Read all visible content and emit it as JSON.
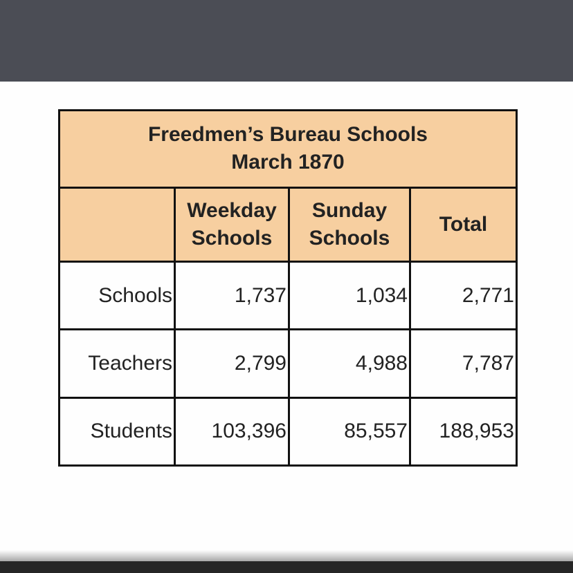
{
  "table": {
    "title_line1": "Freedmen’s Bureau Schools",
    "title_line2": "March 1870",
    "columns": [
      {
        "line1": "",
        "line2": ""
      },
      {
        "line1": "Weekday",
        "line2": "Schools"
      },
      {
        "line1": "Sunday",
        "line2": "Schools"
      },
      {
        "line1": "Total",
        "line2": ""
      }
    ],
    "rows": [
      {
        "label": "Schools",
        "weekday": "1,737",
        "sunday": "1,034",
        "total": "2,771"
      },
      {
        "label": "Teachers",
        "weekday": "2,799",
        "sunday": "4,988",
        "total": "7,787"
      },
      {
        "label": "Students",
        "weekday": "103,396",
        "sunday": "85,557",
        "total": "188,953"
      }
    ]
  },
  "colors": {
    "header_fill": "#f7cfa0",
    "top_bar": "#4b4d55",
    "bottom_bar": "#262626"
  }
}
